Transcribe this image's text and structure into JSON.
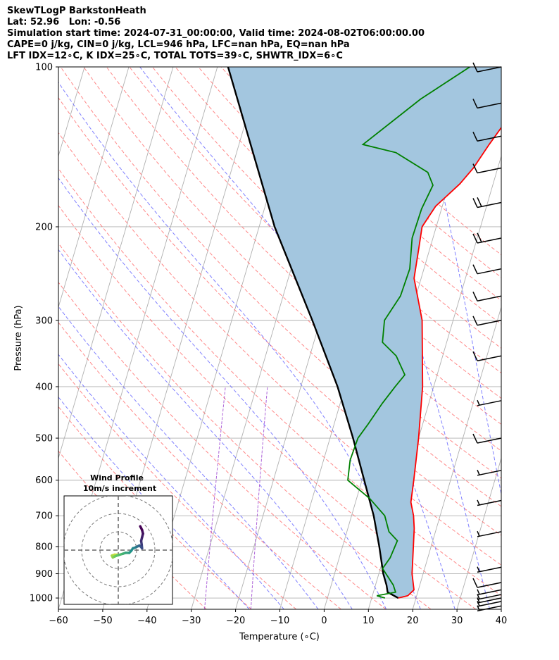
{
  "header": {
    "line1": "SkewTLogP BarkstonHeath",
    "line2": "Lat: 52.96   Lon: -0.56",
    "line3": "Simulation start time: 2024-07-31_00:00:00, Valid time: 2024-08-02T06:00:00.00",
    "line4": "CAPE=0 j/kg, CIN=0 j/kg, LCL=946 hPa, LFC=nan hPa, EQ=nan hPa",
    "line5": "LFT IDX=12∘C, K IDX=25∘C, TOTAL TOTS=39∘C, SHWTR_IDX=6∘C"
  },
  "colors": {
    "temperature": "#ff0000",
    "dewpoint": "#008000",
    "parcel": "#000000",
    "cin_fill": "#a3c6df",
    "dry_adiabat": "#ff6a6a",
    "moist_adiabat": "#6a6aff",
    "mixing_ratio": "#9a3dcf",
    "isotherm": "#b0b0b0"
  },
  "chart_data": [
    {
      "type": "line",
      "title": "",
      "xlabel": "Temperature (∘C)",
      "ylabel": "Pressure (hPa)",
      "xlim": [
        -60,
        40
      ],
      "ylim": [
        1050,
        100
      ],
      "y_scale": "log",
      "grid": true,
      "x_ticks": [
        "−60",
        "−50",
        "−40",
        "−30",
        "−20",
        "−10",
        "0",
        "10",
        "20",
        "30",
        "40"
      ],
      "y_ticks": [
        "100",
        "200",
        "300",
        "400",
        "500",
        "600",
        "700",
        "800",
        "900",
        "1000"
      ],
      "series": [
        {
          "role": "temperature",
          "points": [
            [
              16,
              1000
            ],
            [
              18,
              990
            ],
            [
              19,
              965
            ],
            [
              17.5,
              900
            ],
            [
              16,
              800
            ],
            [
              15,
              740
            ],
            [
              14,
              700
            ],
            [
              12.5,
              660
            ],
            [
              11.7,
              600
            ],
            [
              10,
              500
            ],
            [
              7.5,
              400
            ],
            [
              3,
              300
            ],
            [
              -1.6,
              250
            ],
            [
              -2.5,
              220
            ],
            [
              -3.2,
              200
            ],
            [
              -1.5,
              183
            ],
            [
              2.5,
              166
            ],
            [
              4.5,
              155
            ],
            [
              6.5,
              140
            ],
            [
              9,
              125
            ],
            [
              11.5,
              110
            ],
            [
              14,
              100
            ]
          ]
        },
        {
          "role": "dewpoint",
          "points": [
            [
              13,
              1000
            ],
            [
              11,
              990
            ],
            [
              15,
              975
            ],
            [
              14,
              945
            ],
            [
              10.5,
              880
            ],
            [
              11.5,
              840
            ],
            [
              12,
              780
            ],
            [
              9.5,
              750
            ],
            [
              7.5,
              700
            ],
            [
              3,
              650
            ],
            [
              -3.2,
              600
            ],
            [
              -4,
              550
            ],
            [
              -3.7,
              500
            ],
            [
              -2.3,
              470
            ],
            [
              -0.5,
              430
            ],
            [
              1.3,
              400
            ],
            [
              2.7,
              380
            ],
            [
              -0.5,
              350
            ],
            [
              -4.5,
              330
            ],
            [
              -5.5,
              300
            ],
            [
              -3.5,
              270
            ],
            [
              -3.2,
              240
            ],
            [
              -4.7,
              210
            ],
            [
              -4.5,
              185
            ],
            [
              -3.5,
              167
            ],
            [
              -5.5,
              158
            ],
            [
              -14,
              145
            ],
            [
              -22,
              140
            ],
            [
              -12,
              115
            ],
            [
              -3,
              100
            ]
          ]
        },
        {
          "role": "parcel",
          "points": [
            [
              16,
              1000
            ],
            [
              13.2,
              975
            ],
            [
              12.5,
              946
            ],
            [
              11,
              900
            ],
            [
              8.3,
              800
            ],
            [
              5,
              700
            ],
            [
              0.5,
              600
            ],
            [
              -4.8,
              500
            ],
            [
              -11.7,
              400
            ],
            [
              -21.8,
              300
            ],
            [
              -36.5,
              200
            ],
            [
              -57.6,
              100
            ]
          ]
        }
      ]
    },
    {
      "type": "scatter",
      "title": "Wind Profile",
      "subtitle": "10m/s increment",
      "rings_ms": [
        10,
        20,
        30
      ],
      "points": [
        [
          12,
          -13
        ],
        [
          13,
          -11
        ],
        [
          13.5,
          -9
        ],
        [
          13,
          -7
        ],
        [
          12.5,
          -5
        ],
        [
          12.8,
          -3
        ],
        [
          13,
          -1
        ],
        [
          12.2,
          -2
        ],
        [
          11.5,
          -2.5
        ],
        [
          10.5,
          -2
        ],
        [
          9.5,
          -1.5
        ],
        [
          8,
          -1
        ],
        [
          7,
          0.5
        ],
        [
          6,
          1.5
        ],
        [
          4,
          1.5
        ],
        [
          2.5,
          2
        ],
        [
          0.8,
          2.5
        ],
        [
          -0.8,
          3
        ],
        [
          -2,
          3.5
        ],
        [
          -3,
          4
        ],
        [
          -3.5,
          3
        ],
        [
          -2,
          2.5
        ],
        [
          -0.5,
          2.5
        ]
      ]
    },
    {
      "type": "barbs",
      "barbs": [
        {
          "p": 100,
          "full": 1,
          "half": 0
        },
        {
          "p": 117,
          "full": 1,
          "half": 0
        },
        {
          "p": 135,
          "full": 1,
          "half": 0
        },
        {
          "p": 155,
          "full": 1,
          "half": 0
        },
        {
          "p": 180,
          "full": 2,
          "half": 0
        },
        {
          "p": 210,
          "full": 2,
          "half": 0
        },
        {
          "p": 240,
          "full": 1,
          "half": 0
        },
        {
          "p": 270,
          "full": 1,
          "half": 0
        },
        {
          "p": 300,
          "full": 1,
          "half": 0
        },
        {
          "p": 350,
          "full": 1,
          "half": 0
        },
        {
          "p": 425,
          "full": 0,
          "half": 1
        },
        {
          "p": 500,
          "full": 1,
          "half": 0
        },
        {
          "p": 575,
          "full": 0,
          "half": 1
        },
        {
          "p": 655,
          "full": 0,
          "half": 1
        },
        {
          "p": 750,
          "full": 0,
          "half": 1
        },
        {
          "p": 875,
          "full": 0,
          "half": 1
        },
        {
          "p": 935,
          "full": 1,
          "half": 0
        },
        {
          "p": 965,
          "full": 0,
          "half": 1
        },
        {
          "p": 985,
          "full": 0,
          "half": 1
        },
        {
          "p": 1000,
          "full": 0,
          "half": 1
        },
        {
          "p": 1015,
          "full": 0,
          "half": 1
        },
        {
          "p": 1035,
          "full": 0,
          "half": 1
        }
      ]
    }
  ]
}
